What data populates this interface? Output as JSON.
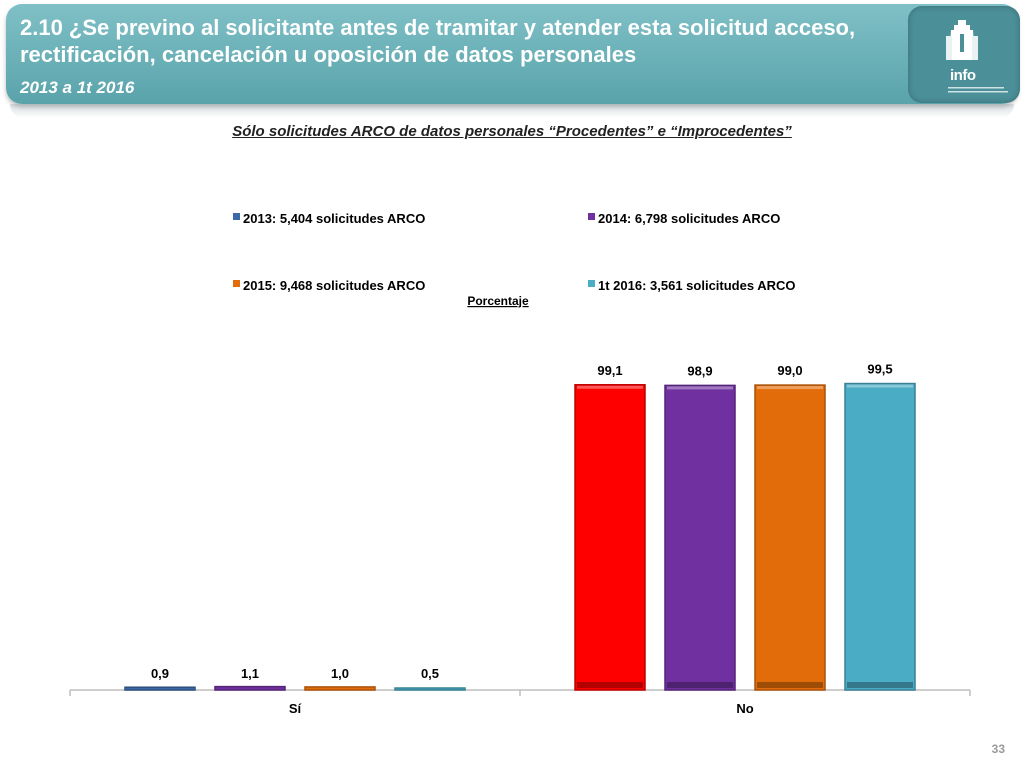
{
  "header": {
    "title": "2.10 ¿Se previno al solicitante  antes de tramitar y atender esta solicitud acceso, rectificación, cancelación u oposición de datos personales",
    "subtitle": "2013 a 1t 2016",
    "logo_text": "info"
  },
  "page_number": "33",
  "chart_data": {
    "type": "bar",
    "title": "Sólo solicitudes ARCO de datos personales “Procedentes” e “Improcedentes”",
    "ylabel": "Porcentaje",
    "categories": [
      "Sí",
      "No"
    ],
    "ylim": [
      0,
      100
    ],
    "grid": false,
    "legend_position": "top",
    "series": [
      {
        "name": "2013: 5,404 solicitudes ARCO",
        "color": "#3d6aa6",
        "values": [
          0.9,
          99.1
        ],
        "labels": [
          "0,9",
          "99,1"
        ]
      },
      {
        "name": "2014: 6,798 solicitudes ARCO",
        "color": "#7030a0",
        "values": [
          1.1,
          98.9
        ],
        "labels": [
          "1,1",
          "98,9"
        ]
      },
      {
        "name": "2015: 9,468 solicitudes ARCO",
        "color": "#e36c0a",
        "values": [
          1.0,
          99.0
        ],
        "labels": [
          "1,0",
          "99,0"
        ]
      },
      {
        "name": "1t 2016: 3,561 solicitudes ARCO",
        "color": "#4bacc6",
        "values": [
          0.5,
          99.5
        ],
        "labels": [
          "0,5",
          "99,5"
        ]
      }
    ],
    "point_colors": {
      "No": [
        "#ff0000",
        "#7030a0",
        "#e36c0a",
        "#4bacc6"
      ]
    }
  }
}
